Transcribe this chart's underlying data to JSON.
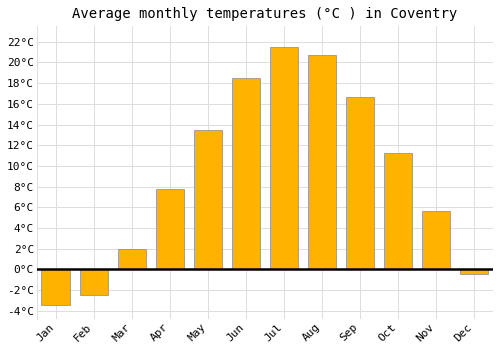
{
  "title": "Average monthly temperatures (°C ) in Coventry",
  "months": [
    "Jan",
    "Feb",
    "Mar",
    "Apr",
    "May",
    "Jun",
    "Jul",
    "Aug",
    "Sep",
    "Oct",
    "Nov",
    "Dec"
  ],
  "values": [
    -3.5,
    -2.5,
    2.0,
    7.8,
    13.5,
    18.5,
    21.5,
    20.7,
    16.7,
    11.2,
    5.6,
    -0.5
  ],
  "bar_color": "#FFB300",
  "bar_edge_color": "#888888",
  "background_color": "#FFFFFF",
  "plot_bg_color": "#FFFFFF",
  "grid_color": "#DDDDDD",
  "yticks": [
    -4,
    -2,
    0,
    2,
    4,
    6,
    8,
    10,
    12,
    14,
    16,
    18,
    20,
    22
  ],
  "ylim": [
    -4.8,
    23.5
  ],
  "title_fontsize": 10,
  "tick_fontsize": 8,
  "font_family": "monospace"
}
